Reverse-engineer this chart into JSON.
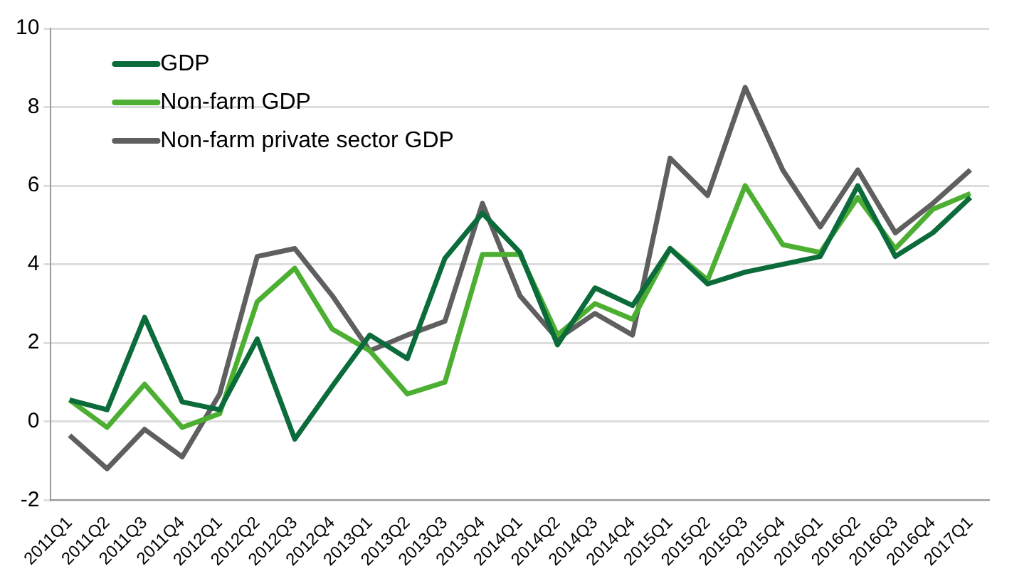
{
  "chart_data": {
    "type": "line",
    "categories": [
      "2011Q1",
      "2011Q2",
      "2011Q3",
      "2011Q4",
      "2012Q1",
      "2012Q2",
      "2012Q3",
      "2012Q4",
      "2013Q1",
      "2013Q2",
      "2013Q3",
      "2013Q4",
      "2014Q1",
      "2014Q2",
      "2014Q3",
      "2014Q4",
      "2015Q1",
      "2015Q2",
      "2015Q3",
      "2015Q4",
      "2016Q1",
      "2016Q2",
      "2016Q3",
      "2016Q4",
      "2017Q1"
    ],
    "series": [
      {
        "name": "GDP",
        "color": "#0b6b3a",
        "values": [
          0.55,
          0.3,
          2.65,
          0.5,
          0.3,
          2.1,
          -0.45,
          0.9,
          2.2,
          1.6,
          4.15,
          5.3,
          4.3,
          1.95,
          3.4,
          2.95,
          4.4,
          3.5,
          3.8,
          4.0,
          4.2,
          6.0,
          4.2,
          4.8,
          5.7
        ]
      },
      {
        "name": "Non-farm GDP",
        "color": "#4caf32",
        "values": [
          0.55,
          -0.15,
          0.95,
          -0.15,
          0.2,
          3.05,
          3.9,
          2.35,
          1.8,
          0.7,
          1.0,
          4.25,
          4.25,
          2.2,
          3.0,
          2.6,
          4.4,
          3.6,
          6.0,
          4.5,
          4.3,
          5.7,
          4.4,
          5.4,
          5.8
        ]
      },
      {
        "name": "Non-farm private sector GDP",
        "color": "#5f5f5f",
        "values": [
          -0.35,
          -1.2,
          -0.2,
          -0.9,
          0.7,
          4.2,
          4.4,
          3.2,
          1.8,
          2.2,
          2.55,
          5.55,
          3.2,
          2.1,
          2.75,
          2.2,
          6.7,
          5.75,
          8.5,
          6.4,
          4.95,
          6.4,
          4.8,
          5.55,
          6.4
        ]
      }
    ],
    "ylim": [
      -2,
      10
    ],
    "yticks": [
      -2,
      0,
      2,
      4,
      6,
      8,
      10
    ],
    "grid": "y",
    "legend": "top left",
    "marker": "none",
    "line_style": "solid"
  }
}
